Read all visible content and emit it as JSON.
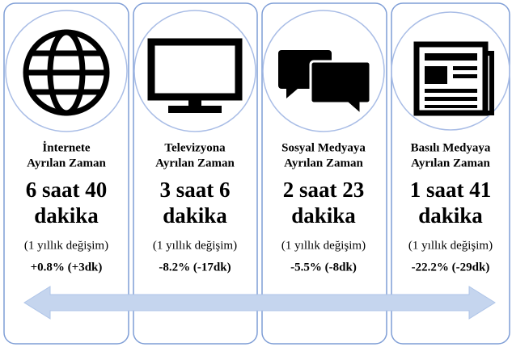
{
  "cards": [
    {
      "label": [
        "İnternete",
        "Ayrılan Zaman"
      ],
      "time": [
        "6 saat 40",
        "dakika"
      ],
      "change_label": "(1 yıllık değişim)",
      "change": "+0.8% (+3dk)"
    },
    {
      "label": [
        "Televizyona",
        "Ayrılan Zaman"
      ],
      "time": [
        "3 saat 6",
        "dakika"
      ],
      "change_label": "(1 yıllık değişim)",
      "change": "-8.2% (-17dk)"
    },
    {
      "label": [
        "Sosyal Medyaya",
        "Ayrılan Zaman"
      ],
      "time": [
        "2 saat 23",
        "dakika"
      ],
      "change_label": "(1 yıllık değişim)",
      "change": "-5.5% (-8dk)"
    },
    {
      "label": [
        "Basılı Medyaya",
        "Ayrılan Zaman"
      ],
      "time": [
        "1 saat 41",
        "dakika"
      ],
      "change_label": "(1 yıllık değişim)",
      "change": "-22.2% (-29dk)"
    }
  ]
}
